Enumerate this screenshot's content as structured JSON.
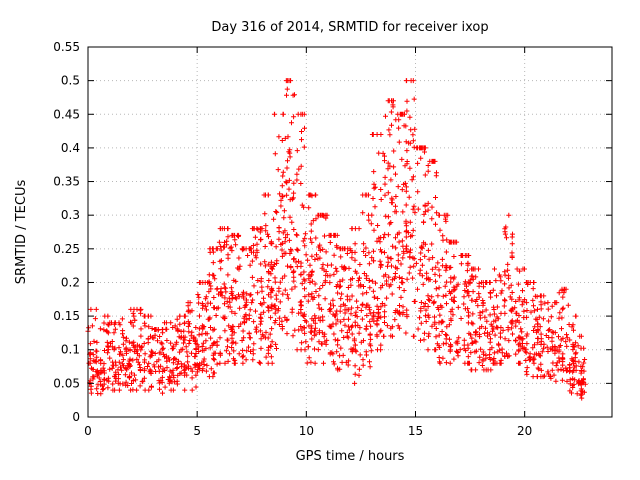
{
  "chart": {
    "title": "Day 316 of 2014, SRMTID for receiver ixop",
    "xlabel": "GPS time / hours",
    "ylabel": "SRMTID / TECUs"
  },
  "chart_data": {
    "type": "scatter",
    "title": "Day 316 of 2014, SRMTID for receiver ixop",
    "xlabel": "GPS time / hours",
    "ylabel": "SRMTID / TECUs",
    "marker": "plus",
    "marker_color": "#ff0000",
    "background_color": "#ffffff",
    "border_color": "#000000",
    "grid": true,
    "grid_color": "#b8b8b8",
    "legend": "none",
    "xlim": [
      0,
      24
    ],
    "ylim": [
      0,
      0.55
    ],
    "xticks": [
      0,
      5,
      10,
      15,
      20
    ],
    "xtick_labels": [
      "0",
      "5",
      "10",
      "15",
      "20"
    ],
    "yticks": [
      0,
      0.05,
      0.1,
      0.15,
      0.2,
      0.25,
      0.3,
      0.35,
      0.4,
      0.45,
      0.5,
      0.55
    ],
    "ytick_labels": [
      "0",
      "0.05",
      "0.1",
      "0.15",
      "0.2",
      "0.25",
      "0.3",
      "0.35",
      "0.4",
      "0.45",
      "0.5",
      "0.55"
    ],
    "x_data_range": [
      0,
      22.8
    ],
    "peaks": [
      {
        "x": 9.2,
        "y": 0.5
      },
      {
        "x": 13.8,
        "y": 0.47
      },
      {
        "x": 14.8,
        "y": 0.5
      }
    ],
    "distribution_profile": [
      {
        "x0": 0.0,
        "x1": 0.5,
        "mean": 0.08,
        "min": 0.03,
        "max": 0.16,
        "n": 45
      },
      {
        "x0": 0.5,
        "x1": 1.0,
        "mean": 0.08,
        "min": 0.03,
        "max": 0.15,
        "n": 45
      },
      {
        "x0": 1.0,
        "x1": 1.5,
        "mean": 0.08,
        "min": 0.04,
        "max": 0.14,
        "n": 40
      },
      {
        "x0": 1.5,
        "x1": 2.0,
        "mean": 0.09,
        "min": 0.04,
        "max": 0.16,
        "n": 45
      },
      {
        "x0": 2.0,
        "x1": 2.5,
        "mean": 0.09,
        "min": 0.04,
        "max": 0.16,
        "n": 45
      },
      {
        "x0": 2.5,
        "x1": 3.0,
        "mean": 0.09,
        "min": 0.04,
        "max": 0.15,
        "n": 40
      },
      {
        "x0": 3.0,
        "x1": 3.5,
        "mean": 0.08,
        "min": 0.03,
        "max": 0.13,
        "n": 40
      },
      {
        "x0": 3.5,
        "x1": 4.0,
        "mean": 0.08,
        "min": 0.04,
        "max": 0.14,
        "n": 40
      },
      {
        "x0": 4.0,
        "x1": 4.5,
        "mean": 0.09,
        "min": 0.04,
        "max": 0.15,
        "n": 45
      },
      {
        "x0": 4.5,
        "x1": 5.0,
        "mean": 0.1,
        "min": 0.04,
        "max": 0.17,
        "n": 45
      },
      {
        "x0": 5.0,
        "x1": 5.5,
        "mean": 0.12,
        "min": 0.05,
        "max": 0.2,
        "n": 50
      },
      {
        "x0": 5.5,
        "x1": 6.0,
        "mean": 0.15,
        "min": 0.06,
        "max": 0.25,
        "n": 55
      },
      {
        "x0": 6.0,
        "x1": 6.5,
        "mean": 0.17,
        "min": 0.08,
        "max": 0.28,
        "n": 55
      },
      {
        "x0": 6.5,
        "x1": 7.0,
        "mean": 0.17,
        "min": 0.08,
        "max": 0.27,
        "n": 55
      },
      {
        "x0": 7.0,
        "x1": 7.5,
        "mean": 0.16,
        "min": 0.08,
        "max": 0.25,
        "n": 55
      },
      {
        "x0": 7.5,
        "x1": 8.0,
        "mean": 0.17,
        "min": 0.08,
        "max": 0.28,
        "n": 55
      },
      {
        "x0": 8.0,
        "x1": 8.5,
        "mean": 0.18,
        "min": 0.08,
        "max": 0.33,
        "n": 60
      },
      {
        "x0": 8.5,
        "x1": 9.0,
        "mean": 0.22,
        "min": 0.1,
        "max": 0.45,
        "n": 60
      },
      {
        "x0": 9.0,
        "x1": 9.5,
        "mean": 0.26,
        "min": 0.1,
        "max": 0.5,
        "n": 65
      },
      {
        "x0": 9.5,
        "x1": 10.0,
        "mean": 0.24,
        "min": 0.1,
        "max": 0.45,
        "n": 60
      },
      {
        "x0": 10.0,
        "x1": 10.5,
        "mean": 0.2,
        "min": 0.08,
        "max": 0.33,
        "n": 60
      },
      {
        "x0": 10.5,
        "x1": 11.0,
        "mean": 0.18,
        "min": 0.08,
        "max": 0.3,
        "n": 55
      },
      {
        "x0": 11.0,
        "x1": 11.5,
        "mean": 0.17,
        "min": 0.07,
        "max": 0.27,
        "n": 55
      },
      {
        "x0": 11.5,
        "x1": 12.0,
        "mean": 0.16,
        "min": 0.06,
        "max": 0.25,
        "n": 55
      },
      {
        "x0": 12.0,
        "x1": 12.5,
        "mean": 0.15,
        "min": 0.05,
        "max": 0.28,
        "n": 55
      },
      {
        "x0": 12.5,
        "x1": 13.0,
        "mean": 0.16,
        "min": 0.06,
        "max": 0.33,
        "n": 55
      },
      {
        "x0": 13.0,
        "x1": 13.5,
        "mean": 0.22,
        "min": 0.1,
        "max": 0.42,
        "n": 60
      },
      {
        "x0": 13.5,
        "x1": 14.0,
        "mean": 0.27,
        "min": 0.12,
        "max": 0.47,
        "n": 65
      },
      {
        "x0": 14.0,
        "x1": 14.5,
        "mean": 0.26,
        "min": 0.12,
        "max": 0.45,
        "n": 60
      },
      {
        "x0": 14.5,
        "x1": 15.0,
        "mean": 0.3,
        "min": 0.12,
        "max": 0.5,
        "n": 65
      },
      {
        "x0": 15.0,
        "x1": 15.5,
        "mean": 0.25,
        "min": 0.1,
        "max": 0.4,
        "n": 60
      },
      {
        "x0": 15.5,
        "x1": 16.0,
        "mean": 0.22,
        "min": 0.1,
        "max": 0.38,
        "n": 55
      },
      {
        "x0": 16.0,
        "x1": 16.5,
        "mean": 0.18,
        "min": 0.08,
        "max": 0.3,
        "n": 55
      },
      {
        "x0": 16.5,
        "x1": 17.0,
        "mean": 0.16,
        "min": 0.08,
        "max": 0.26,
        "n": 50
      },
      {
        "x0": 17.0,
        "x1": 17.5,
        "mean": 0.15,
        "min": 0.08,
        "max": 0.24,
        "n": 50
      },
      {
        "x0": 17.5,
        "x1": 18.0,
        "mean": 0.14,
        "min": 0.07,
        "max": 0.22,
        "n": 50
      },
      {
        "x0": 18.0,
        "x1": 18.5,
        "mean": 0.13,
        "min": 0.07,
        "max": 0.2,
        "n": 45
      },
      {
        "x0": 18.5,
        "x1": 19.0,
        "mean": 0.13,
        "min": 0.08,
        "max": 0.22,
        "n": 45
      },
      {
        "x0": 19.0,
        "x1": 19.5,
        "mean": 0.17,
        "min": 0.09,
        "max": 0.3,
        "n": 50
      },
      {
        "x0": 19.5,
        "x1": 20.0,
        "mean": 0.14,
        "min": 0.08,
        "max": 0.22,
        "n": 45
      },
      {
        "x0": 20.0,
        "x1": 20.5,
        "mean": 0.12,
        "min": 0.06,
        "max": 0.2,
        "n": 45
      },
      {
        "x0": 20.5,
        "x1": 21.0,
        "mean": 0.11,
        "min": 0.06,
        "max": 0.18,
        "n": 45
      },
      {
        "x0": 21.0,
        "x1": 21.5,
        "mean": 0.1,
        "min": 0.05,
        "max": 0.17,
        "n": 40
      },
      {
        "x0": 21.5,
        "x1": 22.0,
        "mean": 0.11,
        "min": 0.05,
        "max": 0.19,
        "n": 45
      },
      {
        "x0": 22.0,
        "x1": 22.4,
        "mean": 0.08,
        "min": 0.03,
        "max": 0.15,
        "n": 40
      },
      {
        "x0": 22.4,
        "x1": 22.8,
        "mean": 0.06,
        "min": 0.02,
        "max": 0.12,
        "n": 35
      }
    ]
  }
}
